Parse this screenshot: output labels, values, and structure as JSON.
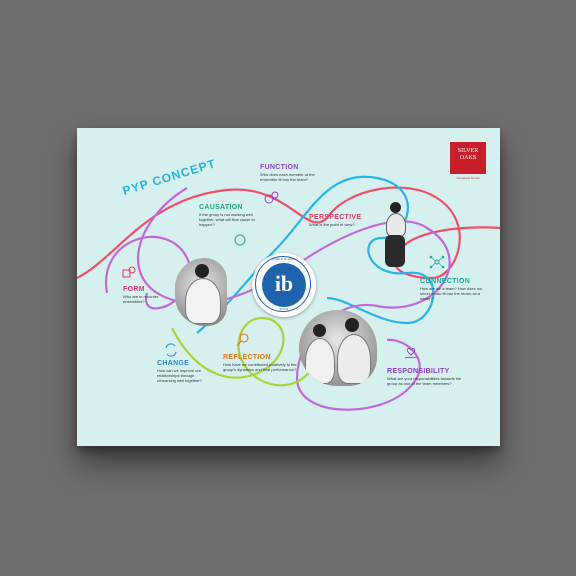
{
  "logo": {
    "line1": "SILVER",
    "line2": "OAKS",
    "subtitle": "International Schools"
  },
  "title": "PYP CONCEPT",
  "badge": {
    "mark": "ib",
    "ring_top": "WORLD SCHOOL",
    "ring_bottom": "SINCE"
  },
  "concepts": {
    "function": {
      "heading": "FUNCTION",
      "question": "Who does each member of the ensemble fit into the team?",
      "color": "#8b3fd0"
    },
    "causation": {
      "heading": "CAUSATION",
      "question": "If the group is not working well together, what will that cause to happen?",
      "color": "#1fa98a"
    },
    "perspective": {
      "heading": "PERSPECTIVE",
      "question": "What is the point of view?",
      "color": "#e23b6b"
    },
    "form": {
      "heading": "FORM",
      "question": "Who are in recorder ensembles?",
      "color": "#e2336b"
    },
    "connection": {
      "heading": "CONNECTION",
      "question": "How are we a team? How does our sheet music fit into the music as a whole?",
      "color": "#1fa9a0"
    },
    "change": {
      "heading": "CHANGE",
      "question": "How can we improve our relationships through rehearsing well together?",
      "color": "#2a8cd8"
    },
    "reflection": {
      "heading": "REFLECTION",
      "question": "How have we contributed positively to the group's dynamics and final performance?",
      "color": "#e07a1e"
    },
    "responsibility": {
      "heading": "RESPONSIBILITY",
      "question": "What are your responsibilities towards the group as one of the team members?",
      "color": "#8b3fd0"
    }
  },
  "colors": {
    "poster_bg": "#d6f0ef",
    "red_curve": "#ee4f6a",
    "blue_curve": "#27b4e6",
    "purple_curve": "#c06ad8",
    "green_curve": "#a8d23a"
  }
}
